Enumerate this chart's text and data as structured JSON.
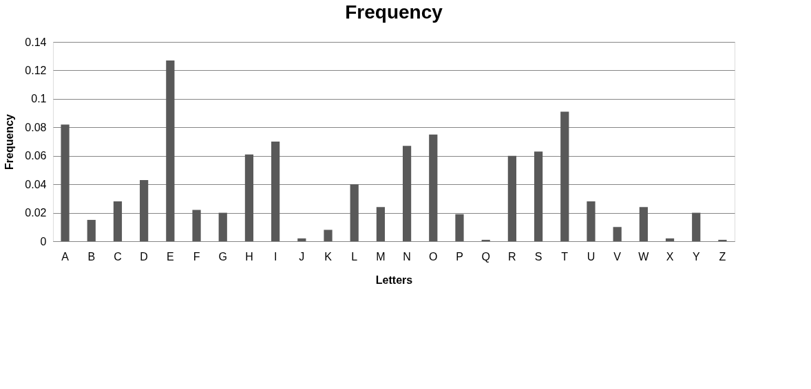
{
  "chart_data": {
    "type": "bar",
    "title": "Frequency",
    "xlabel": "Letters",
    "ylabel": "Frequency",
    "categories": [
      "A",
      "B",
      "C",
      "D",
      "E",
      "F",
      "G",
      "H",
      "I",
      "J",
      "K",
      "L",
      "M",
      "N",
      "O",
      "P",
      "Q",
      "R",
      "S",
      "T",
      "U",
      "V",
      "W",
      "X",
      "Y",
      "Z"
    ],
    "values": [
      0.082,
      0.015,
      0.028,
      0.043,
      0.127,
      0.022,
      0.02,
      0.061,
      0.07,
      0.002,
      0.008,
      0.04,
      0.024,
      0.067,
      0.075,
      0.019,
      0.001,
      0.06,
      0.063,
      0.091,
      0.028,
      0.01,
      0.024,
      0.002,
      0.02,
      0.001
    ],
    "color": "#595959",
    "ylim": [
      0,
      0.14
    ],
    "yticks": [
      0,
      0.02,
      0.04,
      0.06,
      0.08,
      0.1,
      0.12,
      0.14
    ],
    "grid": "y"
  }
}
